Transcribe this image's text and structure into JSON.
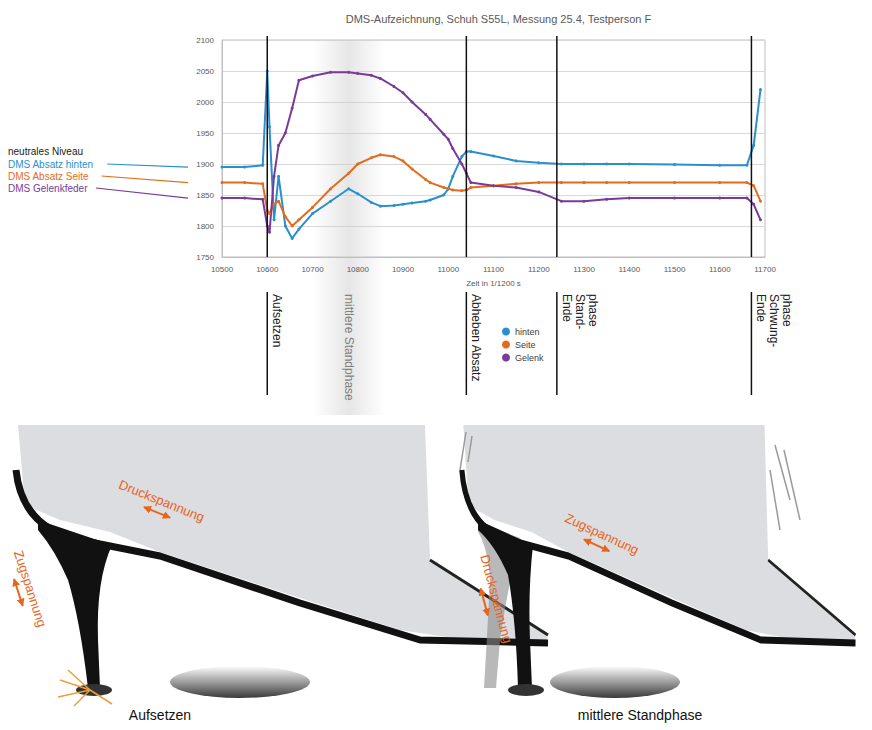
{
  "chart_data": {
    "type": "line",
    "title": "DMS-Aufzeichnung, Schuh S55L, Messung 25.4, Testperson F",
    "x_label": "Zeit in 1/1200 s",
    "neutral_title": "neutrales Niveau",
    "x": [
      10500,
      10550,
      10590,
      10600,
      10605,
      10615,
      10625,
      10640,
      10655,
      10670,
      10700,
      10740,
      10780,
      10800,
      10830,
      10850,
      10880,
      10900,
      10920,
      10950,
      10960,
      10990,
      11000,
      11010,
      11030,
      11040,
      11050,
      11100,
      11150,
      11200,
      11250,
      11300,
      11350,
      11400,
      11500,
      11600,
      11660,
      11675,
      11690
    ],
    "series": [
      {
        "name": "hinten",
        "label": "DMS Absatz hinten",
        "neutral": 1895,
        "color": "#2a8fcf",
        "values": [
          1895,
          1895,
          1898,
          2050,
          1960,
          1810,
          1880,
          1800,
          1780,
          1795,
          1820,
          1840,
          1860,
          1852,
          1838,
          1832,
          1833,
          1835,
          1837,
          1840,
          1842,
          1850,
          1860,
          1880,
          1912,
          1920,
          1920,
          1913,
          1905,
          1902,
          1900,
          1900,
          1900,
          1900,
          1899,
          1898,
          1898,
          1930,
          2020
        ]
      },
      {
        "name": "Seite",
        "label": "DMS Absatz Seite",
        "neutral": 1870,
        "color": "#e36c1c",
        "values": [
          1870,
          1870,
          1868,
          1825,
          1820,
          1835,
          1840,
          1815,
          1800,
          1810,
          1830,
          1860,
          1885,
          1900,
          1910,
          1915,
          1912,
          1905,
          1892,
          1875,
          1870,
          1862,
          1860,
          1858,
          1857,
          1858,
          1862,
          1865,
          1868,
          1870,
          1870,
          1870,
          1870,
          1870,
          1870,
          1870,
          1870,
          1865,
          1840
        ]
      },
      {
        "name": "Gelenk",
        "label": "DMS Gelenkfeder",
        "neutral": 1845,
        "color": "#7a3b97",
        "values": [
          1845,
          1845,
          1843,
          1800,
          1790,
          1880,
          1930,
          1950,
          1990,
          2035,
          2042,
          2048,
          2048,
          2046,
          2043,
          2038,
          2025,
          2015,
          2000,
          1980,
          1972,
          1948,
          1940,
          1925,
          1900,
          1885,
          1870,
          1865,
          1862,
          1855,
          1840,
          1840,
          1843,
          1845,
          1845,
          1845,
          1845,
          1835,
          1810
        ]
      }
    ],
    "xlim": [
      10500,
      11700
    ],
    "xticks": [
      10500,
      10600,
      10700,
      10800,
      10900,
      11000,
      11100,
      11200,
      11300,
      11400,
      11500,
      11600,
      11700
    ],
    "ylim": [
      1750,
      2100
    ],
    "yticks": [
      1750,
      1800,
      1850,
      1900,
      1950,
      2000,
      2050,
      2100
    ],
    "grid": true,
    "legend": "bottom",
    "marker": "circle",
    "line_style": "solid",
    "annotations": [
      {
        "x": 10600,
        "label": "Aufsetzen"
      },
      {
        "x": 10780,
        "label": "mittlere Standphase",
        "band": [
          10700,
          10860
        ]
      },
      {
        "x": 11040,
        "label": "Abheben Absatz"
      },
      {
        "x": 11240,
        "label": "Ende\nStand-\nphase"
      },
      {
        "x": 11670,
        "label": "Ende\nSchwung-\nphase"
      }
    ]
  },
  "diagrams": [
    {
      "caption": "Aufsetzen",
      "compression": "Druckspannung",
      "tension": "Zugspannung"
    },
    {
      "caption": "mittlere Standphase",
      "compression": "Druckspannung",
      "tension": "Zugspannung"
    }
  ]
}
